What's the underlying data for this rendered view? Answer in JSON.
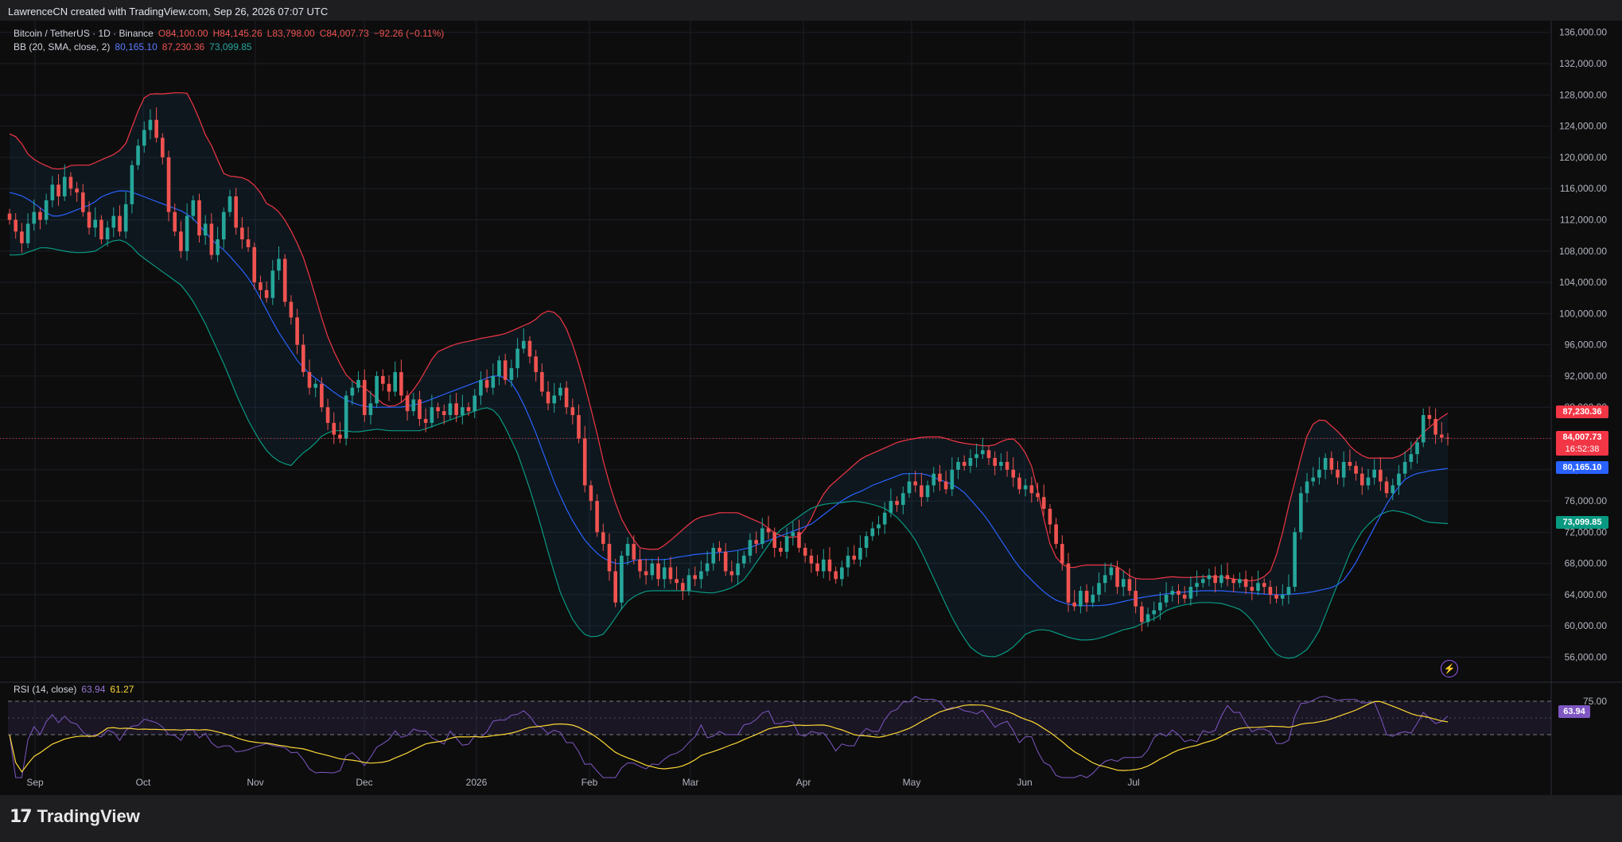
{
  "header": {
    "caption": "LawrenceCN created with TradingView.com, Sep 26, 2026 07:07 UTC"
  },
  "legend": {
    "symbol": "Bitcoin / TetherUS · 1D · Binance",
    "open": "O84,100.00",
    "high": "H84,145.26",
    "low": "L83,798.00",
    "close": "C84,007.73",
    "change": "−92.26 (−0.11%)",
    "bb_label": "BB (20, SMA, close, 2)",
    "bb_basis": "80,165.10",
    "bb_upper": "87,230.36",
    "bb_lower": "73,099.85",
    "rsi_label": "RSI (14, close)",
    "rsi_value": "63.94",
    "rsi_ma": "61.27"
  },
  "price_labels": {
    "upper": "87,230.36",
    "last": "84,007.73",
    "countdown": "16:52:38",
    "basis": "80,165.10",
    "lower": "73,099.85",
    "rsi": "63.94"
  },
  "footer": {
    "brand": "TradingView"
  },
  "colors": {
    "up": "#26a69a",
    "down": "#ef5350",
    "upper_band": "#f23645",
    "basis": "#2962ff",
    "lower_band": "#089981",
    "rsi": "#7e57c2",
    "rsi_ma": "#fdd835"
  },
  "chart_data": {
    "type": "candlestick",
    "x_ticks": [
      "Sep",
      "Oct",
      "Nov",
      "Dec",
      "2026",
      "Feb",
      "Mar",
      "Apr",
      "May",
      "Jun",
      "Jul"
    ],
    "y_ticks": [
      136000,
      132000,
      128000,
      124000,
      120000,
      116000,
      112000,
      108000,
      104000,
      100000,
      96000,
      92000,
      88000,
      84000,
      80000,
      76000,
      72000,
      68000,
      64000,
      60000,
      56000
    ],
    "ylim": [
      53000,
      137500
    ],
    "rsi_ticks": [
      75.0
    ],
    "closes": [
      112000,
      110500,
      109000,
      111500,
      113000,
      112000,
      114500,
      116500,
      115000,
      117500,
      116000,
      115500,
      113000,
      111000,
      112000,
      109500,
      111000,
      112500,
      110500,
      114000,
      119000,
      121500,
      123500,
      124800,
      122500,
      120000,
      113000,
      110500,
      108000,
      112500,
      114500,
      110000,
      111500,
      107500,
      109500,
      113000,
      115000,
      111000,
      109500,
      108500,
      104000,
      103000,
      102000,
      105500,
      107000,
      101500,
      99500,
      96000,
      92500,
      90500,
      91000,
      88000,
      86000,
      84500,
      84000,
      89500,
      90500,
      91500,
      87000,
      88500,
      92000,
      91000,
      90000,
      92500,
      89500,
      87500,
      89000,
      86500,
      86000,
      88000,
      87500,
      87000,
      88500,
      87000,
      88000,
      87500,
      89500,
      91500,
      90500,
      92000,
      94000,
      91500,
      93000,
      95500,
      96500,
      94500,
      92500,
      90000,
      88500,
      89500,
      90500,
      88000,
      87000,
      84000,
      78000,
      76000,
      72000,
      70500,
      67000,
      63000,
      69000,
      70500,
      68500,
      67000,
      66500,
      68000,
      66000,
      67500,
      66000,
      65500,
      64500,
      66500,
      66000,
      67000,
      68000,
      70000,
      69500,
      67000,
      66500,
      68000,
      69000,
      71000,
      70500,
      72500,
      72000,
      70000,
      69500,
      71500,
      72000,
      70000,
      69000,
      68000,
      67000,
      68500,
      67000,
      66000,
      67500,
      69000,
      68500,
      70000,
      71500,
      72500,
      73000,
      74500,
      76000,
      75500,
      77000,
      78500,
      78000,
      76500,
      78000,
      79500,
      78500,
      77500,
      80000,
      81000,
      80500,
      81500,
      82000,
      82500,
      81500,
      80500,
      81000,
      80000,
      79000,
      77500,
      78000,
      77000,
      76500,
      75000,
      73000,
      70500,
      68000,
      63000,
      62500,
      64500,
      63000,
      64000,
      65500,
      66500,
      67500,
      65000,
      66000,
      64500,
      62500,
      60500,
      61500,
      62000,
      63000,
      64000,
      64500,
      64000,
      63500,
      65000,
      65500,
      66000,
      66500,
      65500,
      66500,
      66000,
      65500,
      66000,
      65000,
      64500,
      65500,
      65000,
      64000,
      63500,
      64000,
      65000,
      72000,
      77000,
      78500,
      79000,
      80000,
      81500,
      80000,
      79000,
      81000,
      80500,
      79500,
      78000,
      79000,
      80000,
      78500,
      77000,
      78000,
      79500,
      81000,
      82000,
      83500,
      87000,
      86500,
      84500,
      84100,
      84008
    ],
    "bb_upper": [
      123000,
      122500,
      120500,
      119500,
      119000,
      118500,
      118500,
      119000,
      119000,
      119000,
      119500,
      120000,
      120500,
      121500,
      124500,
      127500,
      128200,
      128100,
      128200,
      128300,
      128200,
      126000,
      123000,
      121000,
      118000,
      117500,
      117500,
      117000,
      116000,
      114000,
      113500,
      112000,
      110000,
      107500,
      104000,
      100000,
      96500,
      94000,
      92000,
      91000,
      90500,
      89500,
      88500,
      88000,
      88500,
      89500,
      91000,
      93000,
      95000,
      95500,
      96000,
      96300,
      96500,
      96800,
      97000,
      97200,
      97500,
      98000,
      98500,
      99000,
      100000,
      100500,
      99500,
      97500,
      94000,
      90000,
      85500,
      80500,
      76500,
      73500,
      71500,
      70000,
      69800,
      69800,
      70500,
      71500,
      72500,
      73500,
      74000,
      74200,
      74500,
      74500,
      74500,
      74000,
      73500,
      73000,
      72000,
      71500,
      71300,
      71500,
      73000,
      75500,
      77500,
      78500,
      79500,
      80500,
      81500,
      82000,
      82500,
      83000,
      83500,
      83800,
      84000,
      84200,
      84200,
      84200,
      83800,
      83500,
      83300,
      83200,
      83000,
      83200,
      83800,
      84000,
      83000,
      81000,
      76500,
      71000,
      68500,
      67500,
      67500,
      67800,
      67800,
      67800,
      67800,
      67500,
      66500,
      66000,
      66000,
      66000,
      66200,
      66300,
      66200,
      66200,
      66300,
      66300,
      66300,
      66200,
      66000,
      65800,
      65800,
      66000,
      67000,
      70000,
      75000,
      79500,
      84000,
      86200,
      86500,
      85500,
      84500,
      83000,
      82000,
      81500,
      81500,
      81500,
      81500,
      82000,
      83000,
      84500,
      85500,
      86500,
      87230
    ],
    "basis": [
      115500,
      115200,
      114500,
      113500,
      112500,
      112500,
      113000,
      113500,
      114000,
      115000,
      115500,
      115800,
      115500,
      115000,
      114500,
      114000,
      113500,
      113000,
      112000,
      110500,
      109000,
      108000,
      106500,
      105000,
      103000,
      100500,
      98000,
      96000,
      94000,
      92500,
      91500,
      90500,
      89500,
      88800,
      88300,
      88000,
      88000,
      88000,
      88000,
      88200,
      88500,
      89000,
      89500,
      90000,
      90500,
      91000,
      91500,
      92000,
      92000,
      91000,
      88500,
      85500,
      82000,
      78500,
      75500,
      73000,
      71000,
      69500,
      68500,
      68000,
      68000,
      68500,
      68500,
      68500,
      68500,
      68800,
      69000,
      69200,
      69300,
      69400,
      69500,
      69700,
      70000,
      70500,
      71000,
      71500,
      72000,
      72500,
      73000,
      74000,
      75000,
      76000,
      76800,
      77300,
      78000,
      78500,
      79000,
      79500,
      79500,
      79500,
      79000,
      78500,
      78000,
      77000,
      75500,
      74000,
      72000,
      70000,
      68000,
      66500,
      65200,
      64000,
      63200,
      62800,
      62600,
      62600,
      62600,
      62700,
      63000,
      63300,
      63600,
      63800,
      64000,
      64200,
      64300,
      64400,
      64500,
      64500,
      64500,
      64400,
      64300,
      64200,
      64100,
      64000,
      64000,
      64100,
      64200,
      64400,
      64700,
      65000,
      66000,
      68000,
      70500,
      73000,
      75500,
      77500,
      79000,
      79500,
      79800,
      80000,
      80165
    ],
    "bb_lower": [
      107500,
      107500,
      108000,
      108500,
      108300,
      108000,
      107800,
      107800,
      108000,
      109000,
      109500,
      109000,
      107500,
      106500,
      105500,
      104500,
      103500,
      101500,
      99000,
      96000,
      93000,
      89500,
      86500,
      84000,
      82000,
      81000,
      80500,
      82000,
      83000,
      84500,
      85000,
      85000,
      84800,
      85000,
      85200,
      85000,
      85000,
      85000,
      85000,
      85500,
      86000,
      86500,
      87000,
      87500,
      88000,
      87500,
      85000,
      82000,
      78000,
      73500,
      68500,
      64000,
      61000,
      59000,
      58500,
      59000,
      61000,
      63000,
      64000,
      64500,
      64500,
      64500,
      64500,
      64500,
      64300,
      64200,
      64500,
      65000,
      66000,
      68000,
      70000,
      72000,
      73000,
      74000,
      75000,
      75500,
      75700,
      75800,
      76000,
      75800,
      75500,
      75000,
      74000,
      72500,
      70500,
      67500,
      64500,
      61500,
      59000,
      57000,
      56200,
      56000,
      56500,
      57500,
      59000,
      59500,
      59500,
      59000,
      58500,
      58200,
      58200,
      58500,
      59000,
      59500,
      59800,
      60500,
      61000,
      62000,
      62500,
      62800,
      63000,
      63000,
      62900,
      62500,
      62000,
      60500,
      58500,
      56500,
      55800,
      56000,
      57000,
      59000,
      62500,
      66000,
      69500,
      72000,
      73500,
      74500,
      74800,
      74500,
      74000,
      73300,
      73200,
      73100
    ]
  }
}
